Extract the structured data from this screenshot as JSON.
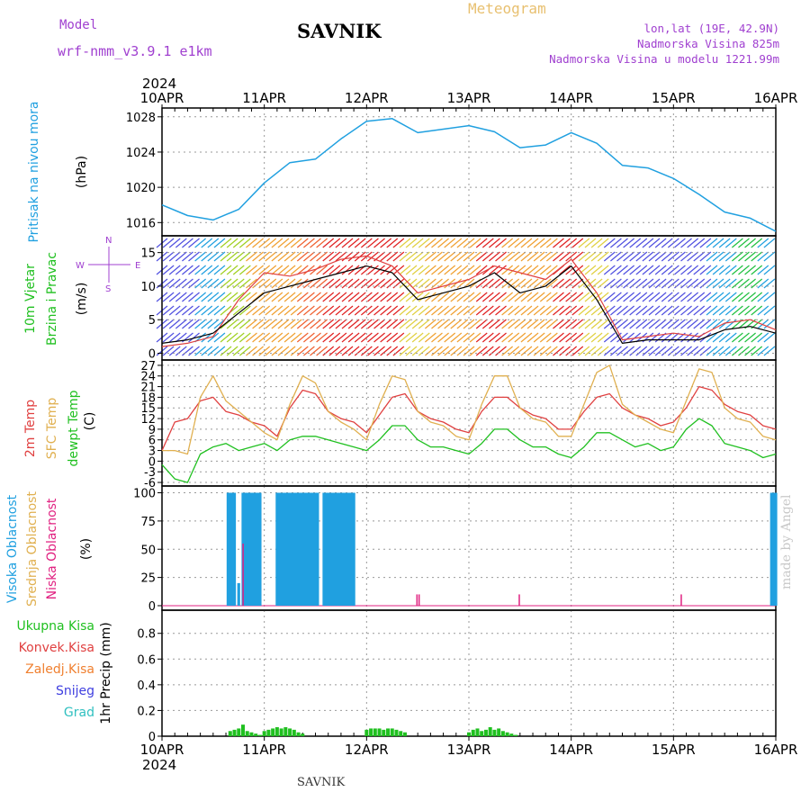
{
  "header": {
    "model_label": "Model",
    "model_name": "wrf-nmm_v3.9.1 e1km",
    "station": "SAVNIK",
    "meteogram_label": "Meteogram",
    "lonlat": "lon,lat (19E, 42.9N)",
    "elevation": "Nadmorska Visina 825m",
    "model_elevation": "Nadmorska Visina u modelu 1221.99m"
  },
  "footer": {
    "station": "SAVNIK",
    "credit": "made by Angel"
  },
  "time_axis": {
    "year": "2024",
    "days": [
      "10APR",
      "11APR",
      "12APR",
      "13APR",
      "14APR",
      "15APR",
      "16APR"
    ]
  },
  "colors": {
    "pressure": "#20a0e0",
    "temp2m": "#e04040",
    "sfc_temp": "#e0b050",
    "dewpoint": "#20c020",
    "high_cloud": "#20a0e0",
    "mid_cloud": "#e0b050",
    "low_cloud": "#e02080",
    "total_precip": "#20c020",
    "grid": "#999999"
  },
  "wind_compass": {
    "n": "N",
    "s": "S",
    "w": "W",
    "e": "E"
  },
  "chart_data": [
    {
      "type": "line",
      "name": "pressure",
      "ylabel_line1": "Pritisak na nivou mora",
      "ylabel_line2": "(hPa)",
      "yticks": [
        1016,
        1020,
        1024,
        1028
      ],
      "ylim": [
        1014.5,
        1029
      ],
      "x_hours": [
        0,
        6,
        12,
        18,
        24,
        30,
        36,
        42,
        48,
        54,
        60,
        66,
        72,
        78,
        84,
        90,
        96,
        102,
        108,
        114,
        120,
        126,
        132,
        138,
        144
      ],
      "values": [
        1018,
        1016.8,
        1016.3,
        1017.5,
        1020.5,
        1022.8,
        1023.2,
        1025.5,
        1027.5,
        1027.8,
        1026.2,
        1026.6,
        1027,
        1026.3,
        1024.5,
        1024.8,
        1026.2,
        1025,
        1022.5,
        1022.2,
        1021,
        1019.2,
        1017.2,
        1016.5,
        1015
      ]
    },
    {
      "type": "line",
      "name": "wind",
      "ylabel_line1": "10m Vjetar",
      "ylabel_line2": "Brzina i Pravac",
      "ylabel_unit": "(m/s)",
      "yticks": [
        0,
        5,
        10,
        15
      ],
      "ylim": [
        -1,
        17.5
      ],
      "x_hours": [
        0,
        6,
        12,
        18,
        24,
        30,
        36,
        42,
        48,
        54,
        60,
        66,
        72,
        78,
        84,
        90,
        96,
        102,
        108,
        114,
        120,
        126,
        132,
        138,
        144
      ],
      "values": [
        1.5,
        2,
        3,
        6,
        9,
        10,
        11,
        12,
        13,
        12,
        8,
        9,
        10,
        12,
        9,
        10,
        13,
        8,
        1.5,
        2,
        2,
        2,
        3.5,
        4,
        3
      ],
      "gust": [
        1,
        1.5,
        2.5,
        8,
        12,
        11.5,
        12.5,
        14,
        14.5,
        13,
        9,
        10,
        11,
        13,
        12,
        11,
        14,
        9,
        2,
        2.5,
        3,
        2.5,
        4.5,
        5,
        3.5
      ]
    },
    {
      "type": "line",
      "name": "temperature",
      "ylabel_line1": "2m Temp",
      "ylabel_line2": "SFC Temp",
      "ylabel_line3": "dewpt Temp",
      "ylabel_unit": "(C)",
      "yticks": [
        -6,
        -3,
        0,
        3,
        6,
        9,
        12,
        15,
        18,
        21,
        24,
        27
      ],
      "ylim": [
        -7,
        28.5
      ],
      "x_hours": [
        0,
        3,
        6,
        9,
        12,
        15,
        18,
        21,
        24,
        27,
        30,
        33,
        36,
        39,
        42,
        45,
        48,
        51,
        54,
        57,
        60,
        63,
        66,
        69,
        72,
        75,
        78,
        81,
        84,
        87,
        90,
        93,
        96,
        99,
        102,
        105,
        108,
        111,
        114,
        117,
        120,
        123,
        126,
        129,
        132,
        135,
        138,
        141,
        144
      ],
      "series": [
        {
          "name": "2m Temp",
          "values": [
            3,
            11,
            12,
            17,
            18,
            14,
            13,
            11,
            10,
            7,
            15,
            20,
            19,
            14,
            12,
            11,
            8,
            13,
            18,
            19,
            14,
            12,
            11,
            9,
            8,
            14,
            18,
            18,
            15,
            13,
            12,
            9,
            9,
            14,
            18,
            19,
            15,
            13,
            12,
            10,
            11,
            15,
            21,
            20,
            16,
            14,
            13,
            10,
            9
          ]
        },
        {
          "name": "SFC Temp",
          "values": [
            3,
            3,
            2,
            18,
            24,
            17,
            14,
            11,
            8,
            6,
            16,
            24,
            22,
            14,
            11,
            9,
            6,
            16,
            24,
            23,
            14,
            11,
            10,
            7,
            6,
            16,
            24,
            24,
            15,
            12,
            11,
            7,
            7,
            16,
            25,
            27,
            16,
            13,
            11,
            9,
            8,
            17,
            26,
            25,
            15,
            12,
            11,
            7,
            6
          ]
        },
        {
          "name": "dewpt Temp",
          "values": [
            -1,
            -5,
            -6,
            2,
            4,
            5,
            3,
            4,
            5,
            3,
            6,
            7,
            7,
            6,
            5,
            4,
            3,
            6,
            10,
            10,
            6,
            4,
            4,
            3,
            2,
            5,
            9,
            9,
            6,
            4,
            4,
            2,
            1,
            4,
            8,
            8,
            6,
            4,
            5,
            3,
            4,
            9,
            12,
            10,
            5,
            4,
            3,
            1,
            2
          ]
        }
      ]
    },
    {
      "type": "bar",
      "name": "cloud",
      "ylabel_line1": "Visoka Oblacnost",
      "ylabel_line2": "Srednja Oblacnost",
      "ylabel_line3": "Niska Oblacnost",
      "ylabel_unit": "(%)",
      "yticks": [
        0,
        25,
        50,
        75,
        100
      ],
      "ylim": [
        -4,
        106
      ],
      "series": [
        {
          "name": "Visoka Oblacnost",
          "x_hours": [
            15.5,
            16,
            16.5,
            17,
            18,
            19,
            19.5,
            20,
            20.5,
            21,
            21.5,
            22,
            22.5,
            23,
            27,
            27.5,
            28,
            28.5,
            29,
            29.5,
            30,
            30.5,
            31,
            31.5,
            32,
            32.5,
            33,
            33.5,
            34,
            34.5,
            35,
            35.5,
            36,
            36.5,
            38,
            38.5,
            39,
            39.5,
            40,
            40.5,
            41,
            41.5,
            42,
            42.5,
            43,
            43.5,
            44,
            44.5,
            45,
            143,
            143.5,
            144
          ],
          "values": [
            100,
            100,
            100,
            100,
            20,
            100,
            100,
            100,
            100,
            100,
            100,
            100,
            100,
            100,
            100,
            100,
            100,
            100,
            100,
            100,
            100,
            100,
            100,
            100,
            100,
            100,
            100,
            100,
            100,
            100,
            100,
            100,
            100,
            100,
            100,
            100,
            100,
            100,
            100,
            100,
            100,
            100,
            100,
            100,
            100,
            100,
            100,
            100,
            100,
            100,
            100,
            100
          ]
        },
        {
          "name": "Niska Oblacnost",
          "x_hours": [
            19.2,
            60,
            60.5,
            84,
            122
          ],
          "values": [
            55,
            10,
            10,
            10,
            10
          ]
        }
      ]
    },
    {
      "type": "bar",
      "name": "precipitation",
      "legend": [
        "Ukupna Kisa",
        "Konvek.Kisa",
        "Zaledj.Kisa",
        "Snijeg",
        "Grad"
      ],
      "ylabel": "1hr Precip (mm)",
      "yticks": [
        0,
        0.2,
        0.4,
        0.6,
        0.8
      ],
      "ylim": [
        0,
        0.98
      ],
      "series": [
        {
          "name": "Ukupna Kisa",
          "x_hours": [
            16,
            17,
            18,
            19,
            20,
            21,
            22,
            23,
            24,
            25,
            26,
            27,
            28,
            29,
            30,
            31,
            32,
            33,
            48,
            49,
            50,
            51,
            52,
            53,
            54,
            55,
            56,
            57,
            72,
            73,
            74,
            75,
            76,
            77,
            78,
            79,
            80,
            81,
            82,
            83
          ],
          "values": [
            0.04,
            0.05,
            0.06,
            0.09,
            0.04,
            0.03,
            0.02,
            0.01,
            0.04,
            0.05,
            0.06,
            0.07,
            0.06,
            0.07,
            0.06,
            0.05,
            0.03,
            0.02,
            0.05,
            0.06,
            0.06,
            0.06,
            0.05,
            0.06,
            0.06,
            0.05,
            0.04,
            0.03,
            0.03,
            0.05,
            0.06,
            0.04,
            0.05,
            0.07,
            0.05,
            0.06,
            0.04,
            0.03,
            0.02,
            0.01
          ]
        }
      ]
    }
  ]
}
